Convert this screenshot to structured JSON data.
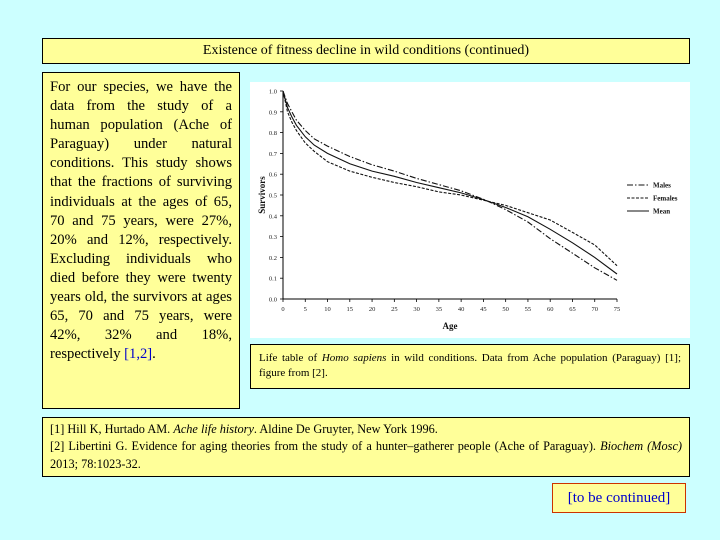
{
  "slide": {
    "title": "Existence of fitness decline in wild conditions (continued)",
    "body_text": "For our species, we have the data from the study of a human population (Ache of Paraguay) under natural conditions. This study shows that the fractions of surviving individuals at the ages of 65, 70 and 75 years, were 27%, 20% and 12%, respectively. Excluding individuals who died before they were twenty years old, the survivors at ages 65, 70 and 75 years, were 42%, 32% and 18%, respectively",
    "body_refs": "[1,2]",
    "body_end": ".",
    "caption_prefix": "Life table of",
    "caption_species": "Homo sapiens",
    "caption_suffix": "in wild conditions. Data from Ache population (Paraguay) [1]; figure from [2].",
    "ref1_authors": "[1] Hill K, Hurtado AM.",
    "ref1_title": "Ache life history",
    "ref1_rest": ". Aldine De Gruyter, New York 1996.",
    "ref2_text": "[2] Libertini G. Evidence for aging theories from the study of a hunter–gatherer people (Ache of Paraguay).",
    "ref2_journal": "Biochem (Mosc)",
    "ref2_rest": "2013; 78:1023-32.",
    "continued": "[to be continued]"
  },
  "colors": {
    "background": "#ccffff",
    "box_fill": "#ffff99",
    "link_blue": "#0000cc"
  },
  "chart_data": {
    "type": "line",
    "xlabel": "Age",
    "ylabel": "Survivors",
    "xlim": [
      0,
      75
    ],
    "ylim": [
      0,
      1.0
    ],
    "x_ticks": [
      0,
      5,
      10,
      15,
      20,
      25,
      30,
      35,
      40,
      45,
      50,
      55,
      60,
      65,
      70,
      75
    ],
    "y_ticks": [
      0,
      0.1,
      0.2,
      0.3,
      0.4,
      0.5,
      0.6,
      0.7,
      0.8,
      0.9,
      1.0
    ],
    "y_tick_labels": [
      "0.0",
      "0.1",
      "0.2",
      "0.3",
      "0.4",
      "0.5",
      "0.6",
      "0.7",
      "0.8",
      "0.9",
      "1.0"
    ],
    "legend_position": "right",
    "series": [
      {
        "name": "Males",
        "style": "dashdot",
        "x": [
          0,
          1,
          2,
          3,
          5,
          7,
          10,
          15,
          20,
          25,
          30,
          35,
          40,
          45,
          50,
          55,
          60,
          65,
          70,
          75
        ],
        "y": [
          1.0,
          0.94,
          0.9,
          0.86,
          0.81,
          0.77,
          0.735,
          0.685,
          0.645,
          0.615,
          0.58,
          0.55,
          0.52,
          0.48,
          0.43,
          0.37,
          0.29,
          0.22,
          0.15,
          0.09
        ]
      },
      {
        "name": "Females",
        "style": "dashed",
        "x": [
          0,
          1,
          2,
          3,
          5,
          7,
          10,
          15,
          20,
          25,
          30,
          35,
          40,
          45,
          50,
          55,
          60,
          65,
          70,
          75
        ],
        "y": [
          1.0,
          0.9,
          0.85,
          0.81,
          0.75,
          0.71,
          0.66,
          0.615,
          0.585,
          0.56,
          0.54,
          0.515,
          0.5,
          0.475,
          0.45,
          0.415,
          0.38,
          0.32,
          0.26,
          0.16
        ]
      },
      {
        "name": "Mean",
        "style": "solid",
        "x": [
          0,
          1,
          2,
          3,
          5,
          7,
          10,
          15,
          20,
          25,
          30,
          35,
          40,
          45,
          50,
          55,
          60,
          65,
          70,
          75
        ],
        "y": [
          1.0,
          0.92,
          0.875,
          0.835,
          0.78,
          0.74,
          0.7,
          0.65,
          0.615,
          0.59,
          0.56,
          0.535,
          0.51,
          0.478,
          0.44,
          0.395,
          0.335,
          0.27,
          0.2,
          0.12
        ]
      }
    ]
  }
}
